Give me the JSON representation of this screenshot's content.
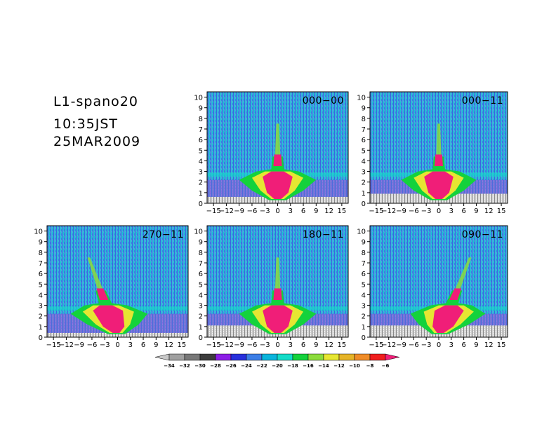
{
  "header": {
    "run": "L1-spano20",
    "time": "10:35JST",
    "date": "25MAR2009"
  },
  "chart_data": {
    "type": "heatmap",
    "xticks": [
      -15,
      -12,
      -9,
      -6,
      -3,
      0,
      3,
      6,
      9,
      12,
      15
    ],
    "yticks": [
      0,
      1,
      2,
      3,
      4,
      5,
      6,
      7,
      8,
      9,
      10
    ],
    "xlim": [
      -16.5,
      16.5
    ],
    "ylim": [
      0,
      10.5
    ],
    "panels": [
      {
        "label": "000-00"
      },
      {
        "label": "000-11"
      },
      {
        "label": "270-11"
      },
      {
        "label": "180-11"
      },
      {
        "label": "090-11"
      }
    ],
    "colorbar": {
      "levels": [
        -34,
        -32,
        -30,
        -28,
        -26,
        -24,
        -22,
        -20,
        -18,
        -16,
        -14,
        -12,
        -10,
        -8,
        -6
      ],
      "colors": [
        "#c8c8c8",
        "#a0a0a0",
        "#787878",
        "#3c3c3c",
        "#8c1ee6",
        "#2830dc",
        "#3c7ee6",
        "#0ab4dc",
        "#14dcc8",
        "#14d23c",
        "#8cdc3c",
        "#e6e632",
        "#e6b428",
        "#f08c28",
        "#f01e1e",
        "#f01e78"
      ]
    }
  }
}
